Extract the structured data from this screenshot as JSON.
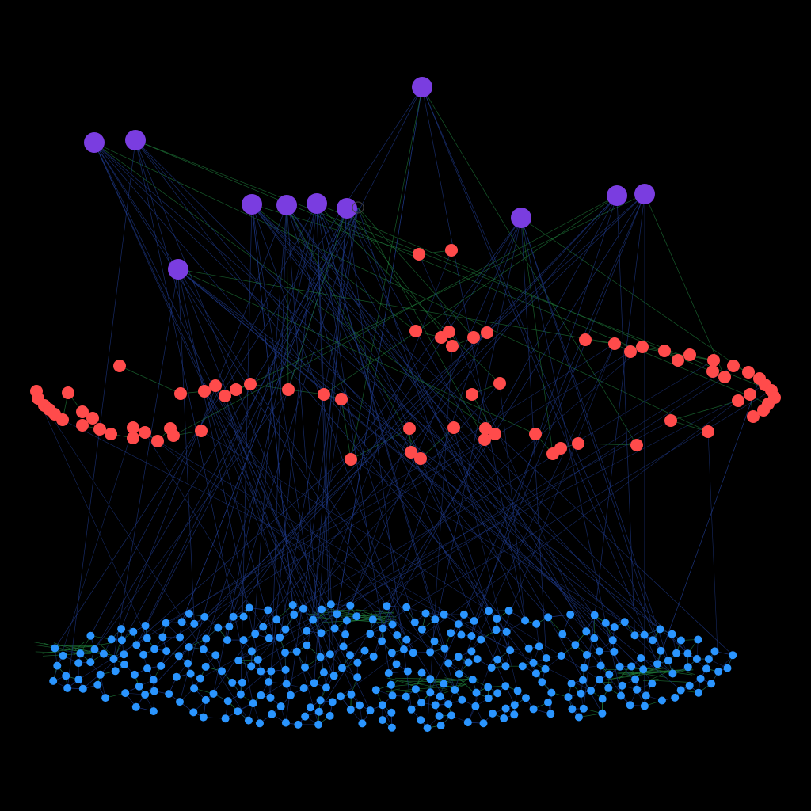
{
  "colors": {
    "background": "#000000",
    "top_nodes": "#7a3de0",
    "middle_nodes": "#ff4b4b",
    "bottom_nodes": "#2a95ff",
    "edge_blue": "#1f3a8a",
    "edge_green": "#1f7a3a"
  },
  "diagram": {
    "type": "multilayer-network",
    "layers": [
      {
        "id": "top",
        "color_key": "top_nodes",
        "count": 12
      },
      {
        "id": "middle",
        "color_key": "middle_nodes",
        "count": 88
      },
      {
        "id": "bottom",
        "color_key": "bottom_nodes",
        "count": 320
      }
    ],
    "text_labels": []
  }
}
